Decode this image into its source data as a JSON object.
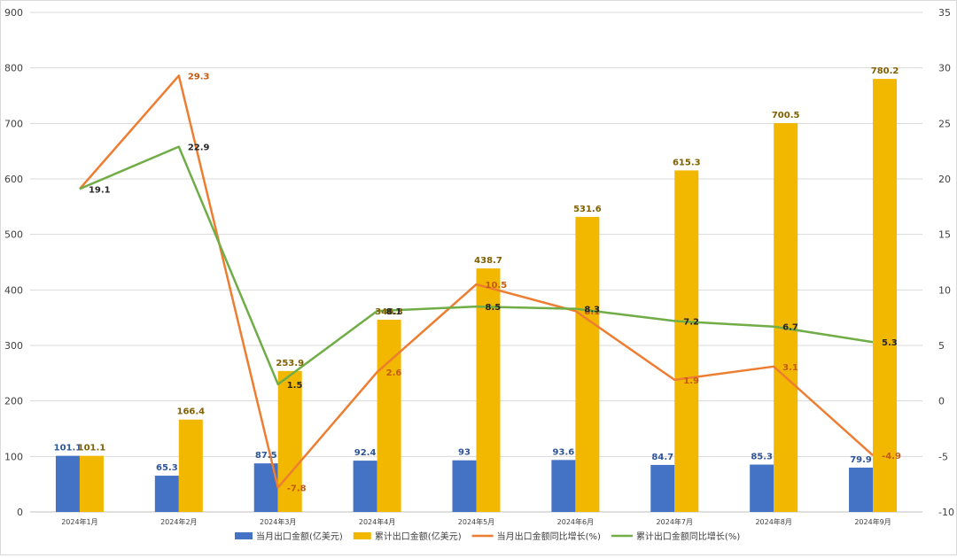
{
  "chart_data": {
    "type": "bar",
    "categories": [
      "2024年1月",
      "2024年2月",
      "2024年3月",
      "2024年4月",
      "2024年5月",
      "2024年6月",
      "2024年7月",
      "2024年8月",
      "2024年9月"
    ],
    "y_left": {
      "min": 0,
      "max": 900,
      "ticks": [
        0,
        100,
        200,
        300,
        400,
        500,
        600,
        700,
        800,
        900
      ]
    },
    "y_right": {
      "min": -10,
      "max": 35,
      "ticks": [
        -10,
        -5,
        0,
        5,
        10,
        15,
        20,
        25,
        30,
        35
      ]
    },
    "grid": true,
    "legend_position": "bottom",
    "series": [
      {
        "name": "当月出口金额(亿美元)",
        "type": "bar",
        "axis": "left",
        "color": "#4472C4",
        "label_color": "#2F5597",
        "values": [
          101.1,
          65.3,
          87.5,
          92.4,
          93,
          93.6,
          84.7,
          85.3,
          79.9
        ],
        "labels": [
          "101.1",
          "65.3",
          "87.5",
          "92.4",
          "93",
          "93.6",
          "84.7",
          "85.3",
          "79.9"
        ]
      },
      {
        "name": "累计出口金额(亿美元)",
        "type": "bar",
        "axis": "left",
        "color": "#F2B800",
        "label_color": "#806000",
        "values": [
          101.1,
          166.4,
          253.9,
          346.3,
          438.7,
          531.6,
          615.3,
          700.5,
          780.2
        ],
        "labels": [
          "101.1",
          "166.4",
          "253.9",
          "346.3",
          "438.7",
          "531.6",
          "615.3",
          "700.5",
          "780.2"
        ]
      },
      {
        "name": "当月出口金额同比增长(%)",
        "type": "line",
        "axis": "right",
        "color": "#ED7D31",
        "label_color": "#C55A11",
        "values": [
          19.1,
          29.3,
          -7.8,
          2.6,
          10.5,
          8.1,
          1.9,
          3.1,
          -4.9
        ],
        "labels": [
          "",
          "29.3",
          "-7.8",
          "2.6",
          "10.5",
          "8.1",
          "1.9",
          "3.1",
          "-4.9"
        ]
      },
      {
        "name": "累计出口金额同比增长(%)",
        "type": "line",
        "axis": "right",
        "color": "#70AD47",
        "label_color": "#262626",
        "values": [
          19.1,
          22.9,
          1.5,
          8.1,
          8.5,
          8.3,
          7.2,
          6.7,
          5.3
        ],
        "labels": [
          "19.1",
          "22.9",
          "1.5",
          "8.1",
          "8.5",
          "8.3",
          "7.2",
          "6.7",
          "5.3"
        ]
      }
    ]
  }
}
